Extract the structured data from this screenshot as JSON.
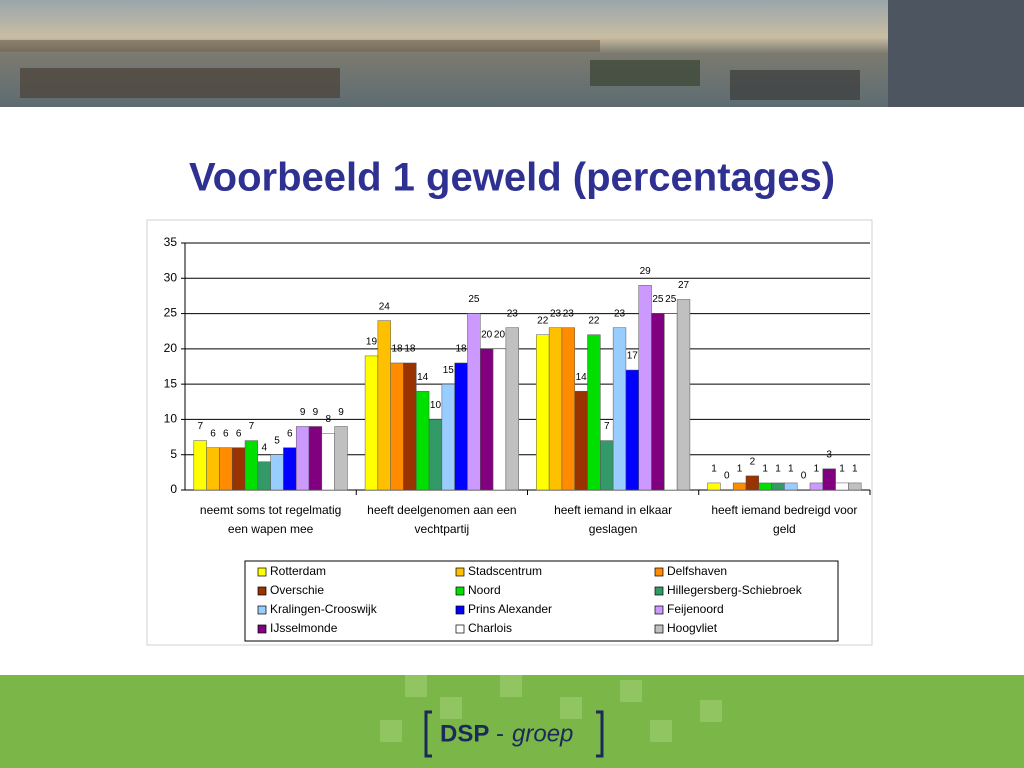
{
  "chart_data": {
    "type": "bar",
    "title": "Voorbeeld 1 geweld (percentages)",
    "categories": [
      "neemt soms tot regelmatig een wapen mee",
      "heeft deelgenomen aan een vechtpartij",
      "heeft iemand in elkaar geslagen",
      "heeft iemand bedreigd voor geld"
    ],
    "series": [
      {
        "name": "Rotterdam",
        "color": "#ffff00",
        "values": [
          7,
          19,
          22,
          1
        ]
      },
      {
        "name": "Stadscentrum",
        "color": "#ffc000",
        "values": [
          6,
          24,
          23,
          0
        ]
      },
      {
        "name": "Delfshaven",
        "color": "#ff8c00",
        "values": [
          6,
          18,
          23,
          1
        ]
      },
      {
        "name": "Overschie",
        "color": "#993300",
        "values": [
          6,
          18,
          14,
          2
        ]
      },
      {
        "name": "Noord",
        "color": "#00e000",
        "values": [
          7,
          14,
          22,
          1
        ]
      },
      {
        "name": "Hillegersberg-Schiebroek",
        "color": "#339966",
        "values": [
          4,
          10,
          7,
          1
        ]
      },
      {
        "name": "Kralingen-Crooswijk",
        "color": "#99ccff",
        "values": [
          5,
          15,
          23,
          1
        ]
      },
      {
        "name": "Prins Alexander",
        "color": "#0000ff",
        "values": [
          6,
          18,
          17,
          0
        ]
      },
      {
        "name": "Feijenoord",
        "color": "#cc99ff",
        "values": [
          9,
          25,
          29,
          1
        ]
      },
      {
        "name": "IJsselmonde",
        "color": "#800080",
        "values": [
          9,
          20,
          25,
          3
        ]
      },
      {
        "name": "Charlois",
        "color": "#ffffff",
        "values": [
          8,
          20,
          25,
          1
        ]
      },
      {
        "name": "Hoogvliet",
        "color": "#c0c0c0",
        "values": [
          9,
          23,
          27,
          1
        ]
      }
    ],
    "ylim": [
      0,
      35
    ],
    "yticks": [
      0,
      5,
      10,
      15,
      20,
      25,
      30,
      35
    ],
    "grid": true,
    "legend": "bottom"
  },
  "logo": {
    "name": "DSP",
    "separator": "-",
    "suffix": "groep"
  }
}
